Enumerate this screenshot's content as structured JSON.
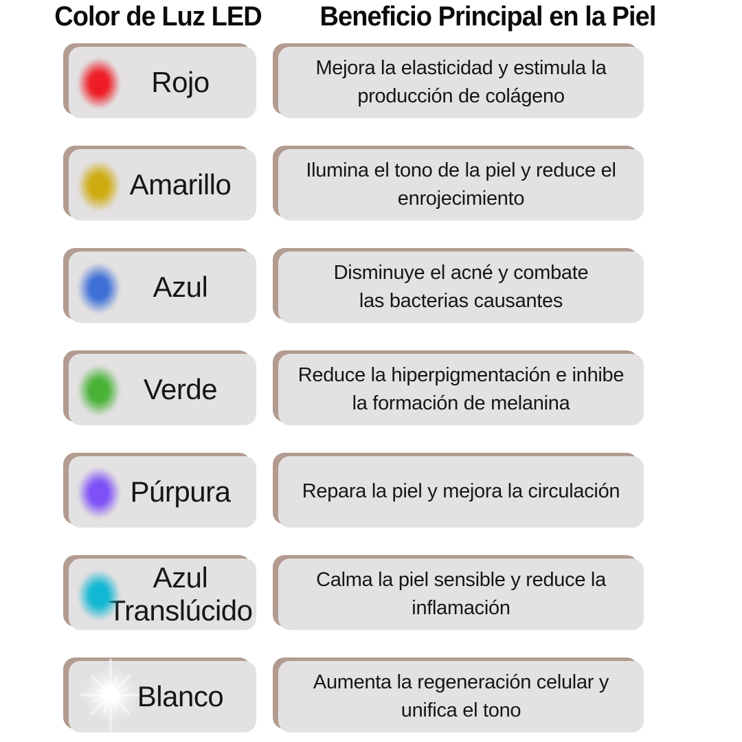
{
  "header": {
    "left": "Color de Luz LED",
    "right": "Beneficio Principal en la Piel"
  },
  "colors": {
    "background": "#ffffff",
    "box_fill": "#e3e1e2",
    "box_shadow": "#b29b90",
    "text": "#161616"
  },
  "rows": [
    {
      "id": "rojo",
      "label": "Rojo",
      "dot_icon": "red-glow-dot",
      "dot_color": "#ee1c25",
      "benefit": "Mejora la elasticidad y estimula la\nproducción de colágeno"
    },
    {
      "id": "amarillo",
      "label": "Amarillo",
      "dot_icon": "yellow-glow-dot",
      "dot_color": "#cfab10",
      "benefit": "Ilumina el tono de la piel y reduce el\nenrojecimiento"
    },
    {
      "id": "azul",
      "label": "Azul",
      "dot_icon": "blue-glow-dot",
      "dot_color": "#3d6fd6",
      "benefit": "Disminuye el acné y combate\nlas bacterias causantes"
    },
    {
      "id": "verde",
      "label": "Verde",
      "dot_icon": "green-glow-dot",
      "dot_color": "#49b237",
      "benefit": "Reduce la hiperpigmentación e inhibe\nla formación de melanina"
    },
    {
      "id": "purpura",
      "label": "Púrpura",
      "dot_icon": "purple-glow-dot",
      "dot_color": "#7d50f8",
      "benefit": "Repara la piel y mejora la circulación"
    },
    {
      "id": "azul-translucido",
      "label": "Azul\nTranslúcido",
      "dot_icon": "cyan-glow-dot",
      "dot_color": "#12b7d3",
      "benefit": "Calma la piel sensible y reduce la\ninflamación"
    },
    {
      "id": "blanco",
      "label": "Blanco",
      "dot_icon": "white-starburst",
      "dot_color": "#ffffff",
      "benefit": "Aumenta la regeneración celular y\nunifica el tono"
    }
  ]
}
